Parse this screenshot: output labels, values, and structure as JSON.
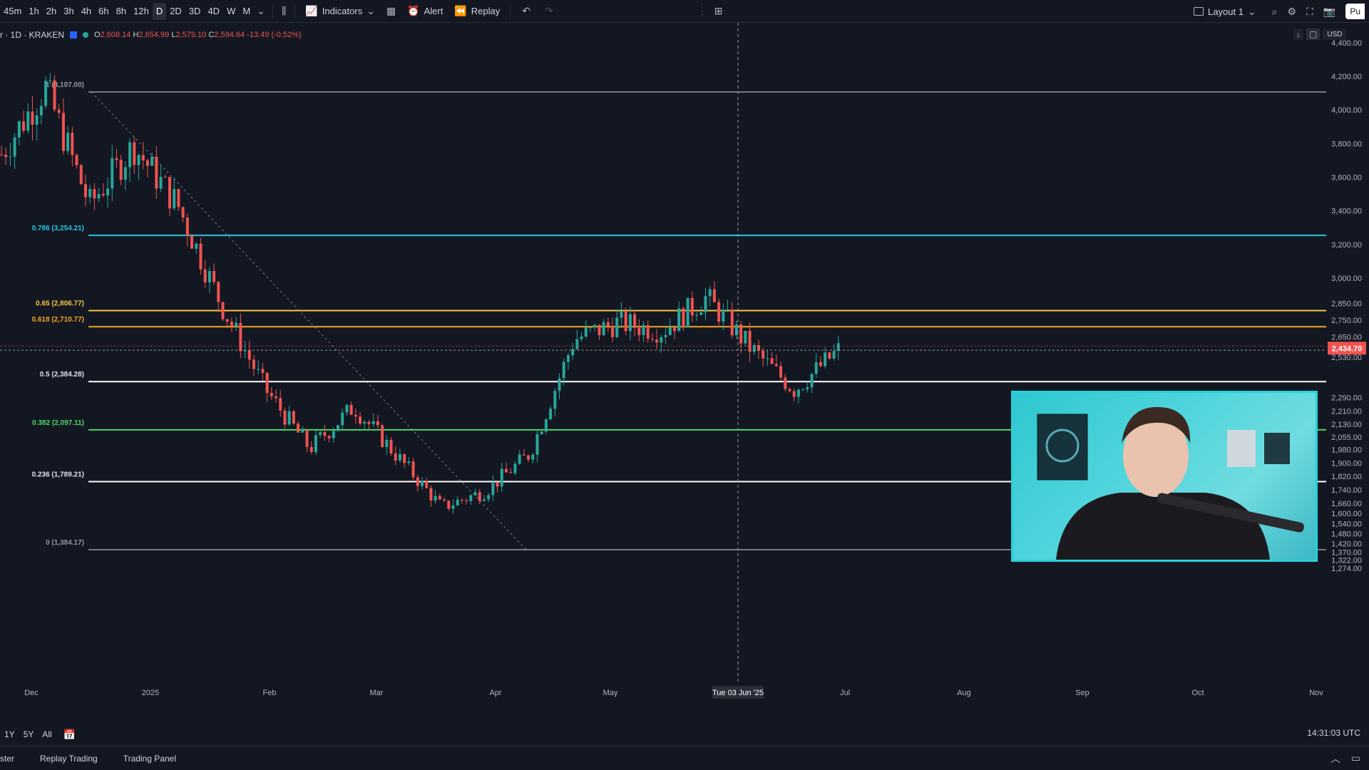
{
  "toolbar": {
    "timeframes": [
      "45m",
      "1h",
      "2h",
      "3h",
      "4h",
      "6h",
      "8h",
      "12h",
      "D",
      "2D",
      "3D",
      "4D",
      "W",
      "M"
    ],
    "active_timeframe": "D",
    "indicators_label": "Indicators",
    "alert_label": "Alert",
    "replay_label": "Replay",
    "layout_label": "Layout 1",
    "publish_label": "Pu"
  },
  "legend": {
    "symbol": "r · 1D · KRAKEN",
    "open_key": "O",
    "open": "2,608.14",
    "high_key": "H",
    "high": "2,654.99",
    "low_key": "L",
    "low": "2,579.10",
    "close_key": "C",
    "close": "2,594.64",
    "change": "-13.49 (-0.52%)"
  },
  "currency": "USD",
  "chart_data": {
    "type": "candlestick",
    "x_ticks": [
      "Dec",
      "2025",
      "Feb",
      "Mar",
      "Apr",
      "May",
      "Tue 03 Jun '25",
      "Jul",
      "Aug",
      "Sep",
      "Oct",
      "Nov"
    ],
    "y_ticks": [
      "4,400.00",
      "4,200.00",
      "4,000.00",
      "3,800.00",
      "3,600.00",
      "3,400.00",
      "3,200.00",
      "3,000.00",
      "2,850.00",
      "2,750.00",
      "2,650.00",
      "2,530.00",
      "2,290.00",
      "2,210.00",
      "2,130.00",
      "2,055.00",
      "1,980.00",
      "1,900.00",
      "1,820.00",
      "1,740.00",
      "1,660.00",
      "1,600.00",
      "1,540.00",
      "1,480.00",
      "1,420.00",
      "1,370.00",
      "1,322.00",
      "1,274.00"
    ],
    "current_price": "2,434.70",
    "fib_levels": [
      {
        "label": "1 (4,107.00)",
        "value": 4107.0,
        "color": "#9598a1"
      },
      {
        "label": "0.786 (3,254.21)",
        "value": 3254.21,
        "color": "#26c6da"
      },
      {
        "label": "0.65 (2,806.77)",
        "value": 2806.77,
        "color": "#f5c542"
      },
      {
        "label": "0.618 (2,710.77)",
        "value": 2710.77,
        "color": "#f5a623"
      },
      {
        "label": "0.5 (2,384.28)",
        "value": 2384.28,
        "color": "#ffffff"
      },
      {
        "label": "0.382 (2,097.11)",
        "value": 2097.11,
        "color": "#4cd964"
      },
      {
        "label": "0.236 (1,789.21)",
        "value": 1789.21,
        "color": "#ffffff"
      },
      {
        "label": "0 (1,384.17)",
        "value": 1384.17,
        "color": "#9598a1"
      }
    ],
    "series": [
      {
        "date": "Dec",
        "close": 3600
      },
      {
        "date": "Dec",
        "close": 4000
      },
      {
        "date": "2025",
        "close": 3300
      },
      {
        "date": "2025",
        "close": 3650
      },
      {
        "date": "Feb",
        "close": 3300
      },
      {
        "date": "Feb",
        "close": 2700
      },
      {
        "date": "Mar",
        "close": 2200
      },
      {
        "date": "Mar",
        "close": 1850
      },
      {
        "date": "Mar",
        "close": 2100
      },
      {
        "date": "Apr",
        "close": 1800
      },
      {
        "date": "Apr",
        "close": 1500
      },
      {
        "date": "Apr",
        "close": 1600
      },
      {
        "date": "May",
        "close": 1820
      },
      {
        "date": "May",
        "close": 2500
      },
      {
        "date": "May",
        "close": 2600
      },
      {
        "date": "Tue 03 Jun '25",
        "close": 2550
      },
      {
        "date": "Tue 03 Jun '25",
        "close": 2750
      },
      {
        "date": "Tue 03 Jun '25",
        "close": 2450
      },
      {
        "date": "Jul",
        "close": 2200
      },
      {
        "date": "Jul",
        "close": 2434.7
      }
    ]
  },
  "range": {
    "items": [
      "1Y",
      "5Y",
      "All"
    ]
  },
  "clock": "14:31:03 UTC",
  "bottom_tabs": [
    "ster",
    "Replay Trading",
    "Trading Panel"
  ]
}
